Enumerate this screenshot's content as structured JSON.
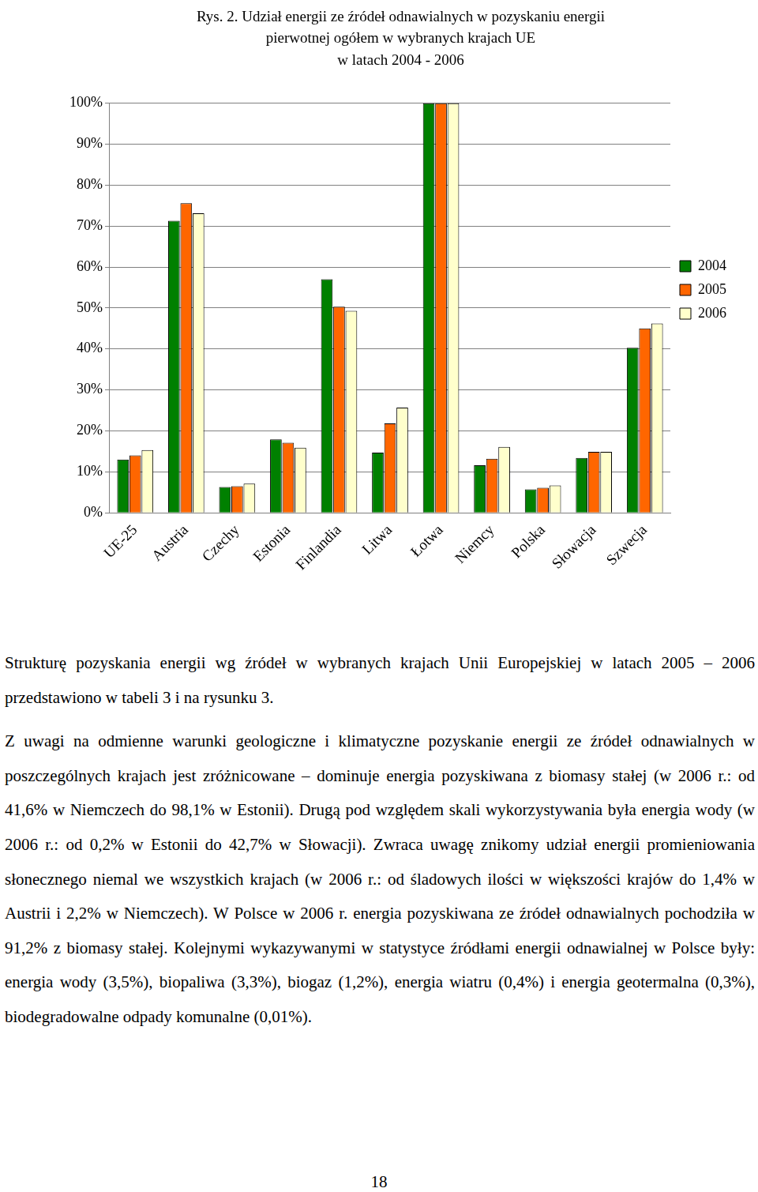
{
  "chart_data": {
    "type": "bar",
    "title": [
      "Rys. 2. Udział energii ze źródeł odnawialnych w pozyskaniu energii",
      "pierwotnej ogółem w wybranych krajach UE",
      "w latach 2004 - 2006"
    ],
    "categories": [
      "UE-25",
      "Austria",
      "Czechy",
      "Estonia",
      "Finlandia",
      "Litwa",
      "Łotwa",
      "Niemcy",
      "Polska",
      "Słowacja",
      "Szwecja"
    ],
    "series": [
      {
        "name": "2004",
        "color": "#008000",
        "values": [
          13.0,
          71.3,
          6.3,
          17.9,
          57.0,
          14.7,
          100,
          11.6,
          5.7,
          13.4,
          40.3
        ]
      },
      {
        "name": "2005",
        "color": "#ff6600",
        "values": [
          14.0,
          75.6,
          6.5,
          17.1,
          50.3,
          21.8,
          100,
          13.2,
          6.1,
          14.9,
          45.0
        ]
      },
      {
        "name": "2006",
        "color": "#ffffcc",
        "values": [
          15.3,
          73.1,
          7.1,
          15.9,
          49.3,
          25.7,
          100,
          16.1,
          6.7,
          14.9,
          46.2
        ]
      }
    ],
    "ylim": [
      0,
      100
    ],
    "yticks": [
      {
        "value": 0,
        "label": "0%"
      },
      {
        "value": 10,
        "label": "10%"
      },
      {
        "value": 20,
        "label": "20%"
      },
      {
        "value": 30,
        "label": "30%"
      },
      {
        "value": 40,
        "label": "40%"
      },
      {
        "value": 50,
        "label": "50%"
      },
      {
        "value": 60,
        "label": "60%"
      },
      {
        "value": 70,
        "label": "70%"
      },
      {
        "value": 80,
        "label": "80%"
      },
      {
        "value": 90,
        "label": "90%"
      },
      {
        "value": 100,
        "label": "100%"
      }
    ],
    "grid": true,
    "legend": "right"
  },
  "paragraphs": [
    "Strukturę pozyskania energii wg źródeł w wybranych krajach Unii Europejskiej w latach 2005 – 2006 przedstawiono w tabeli 3 i na rysunku 3.",
    "Z uwagi na odmienne warunki geologiczne i klimatyczne pozyskanie energii ze źródeł odnawialnych w poszczególnych krajach jest zróżnicowane – dominuje energia pozyskiwana z biomasy stałej (w 2006 r.: od 41,6% w Niemczech do 98,1% w Estonii). Drugą pod względem skali wykorzystywania była energia wody (w 2006 r.: od 0,2% w Estonii do 42,7% w Słowacji). Zwraca uwagę znikomy udział energii promieniowania słonecznego niemal we wszystkich krajach (w 2006 r.: od śladowych ilości w większości krajów do 1,4% w Austrii i 2,2% w Niemczech). W Polsce w 2006 r. energia pozyskiwana ze źródeł odnawialnych pochodziła w 91,2% z biomasy stałej. Kolejnymi wykazywanymi w statystyce źródłami energii odnawialnej w Polsce były: energia wody (3,5%), biopaliwa (3,3%), biogaz (1,2%), energia wiatru (0,4%) i energia geotermalna (0,3%), biodegradowalne odpady komunalne (0,01%)."
  ],
  "page_number": 18
}
